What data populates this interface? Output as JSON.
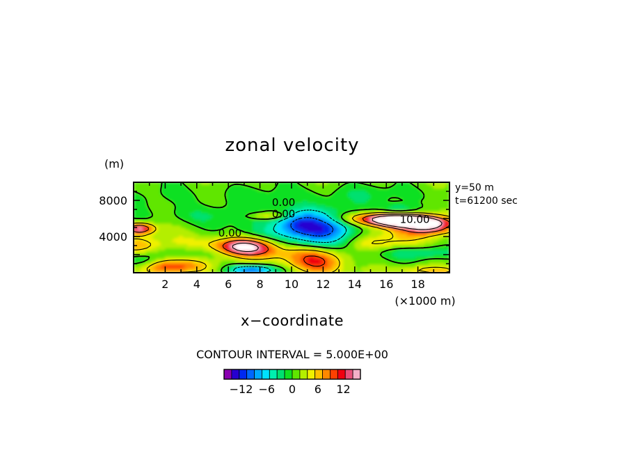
{
  "chart_data": {
    "type": "heatmap",
    "title": "zonal velocity",
    "xlabel": "x−coordinate",
    "ylabel": "(m)",
    "x_unit_label": "(×1000 m)",
    "x_ticks": [
      "2",
      "4",
      "6",
      "8",
      "10",
      "12",
      "14",
      "16",
      "18"
    ],
    "y_ticks": [
      "4000",
      "8000"
    ],
    "xlim": [
      0,
      20
    ],
    "ylim": [
      0,
      10000
    ],
    "info": [
      "y=50 m",
      "t=61200 sec"
    ],
    "contour_interval_text": "CONTOUR INTERVAL = 5.000E+00",
    "contour_labels": [
      {
        "text": "0.00",
        "x": 9.5,
        "y": 7400
      },
      {
        "text": "0.00",
        "x": 9.5,
        "y": 6100
      },
      {
        "text": "0.00",
        "x": 6.1,
        "y": 4000
      },
      {
        "text": "10.00",
        "x": 17.8,
        "y": 5500
      }
    ],
    "colorbar": {
      "tick_labels": [
        "−12",
        "−6",
        "0",
        "6",
        "12"
      ],
      "tick_values": [
        -12,
        -6,
        0,
        6,
        12
      ],
      "min": -16,
      "max": 16,
      "colors": [
        "#8a00b0",
        "#2600d0",
        "#0028f0",
        "#0066ff",
        "#00a8ff",
        "#00e0ff",
        "#00f0b0",
        "#00e070",
        "#10e020",
        "#60e600",
        "#b4ee00",
        "#f0f000",
        "#ffc000",
        "#ff8800",
        "#ff4000",
        "#f00010",
        "#e8507a",
        "#f4b0c8"
      ]
    },
    "grid": false,
    "field_blobs": [
      {
        "x": 5.0,
        "y": 8500,
        "rx": 6.5,
        "ry": 1400,
        "v": -1.5
      },
      {
        "x": 15.0,
        "y": 8700,
        "rx": 5.0,
        "ry": 1100,
        "v": -2.0
      },
      {
        "x": 11.5,
        "y": 5000,
        "rx": 2.6,
        "ry": 2000,
        "v": -13.0
      },
      {
        "x": 10.3,
        "y": 5600,
        "rx": 1.2,
        "ry": 1200,
        "v": -4.0
      },
      {
        "x": 4.5,
        "y": 6300,
        "rx": 3.0,
        "ry": 1100,
        "v": -3.0
      },
      {
        "x": 7.5,
        "y": 4300,
        "rx": 2.5,
        "ry": 900,
        "v": -2.5
      },
      {
        "x": 0.4,
        "y": 4900,
        "rx": 0.9,
        "ry": 600,
        "v": 14.0
      },
      {
        "x": 0.3,
        "y": 3000,
        "rx": 1.6,
        "ry": 1100,
        "v": 5.0
      },
      {
        "x": 7.0,
        "y": 2800,
        "rx": 1.7,
        "ry": 900,
        "v": 13.0
      },
      {
        "x": 6.0,
        "y": 3000,
        "rx": 3.2,
        "ry": 1300,
        "v": 5.0
      },
      {
        "x": 2.3,
        "y": 700,
        "rx": 2.3,
        "ry": 850,
        "v": 10.0
      },
      {
        "x": 0.5,
        "y": 1200,
        "rx": 1.2,
        "ry": 1000,
        "v": -7.0
      },
      {
        "x": 4.5,
        "y": 2300,
        "rx": 3.0,
        "ry": 800,
        "v": -3.5
      },
      {
        "x": 7.6,
        "y": 300,
        "rx": 1.6,
        "ry": 600,
        "v": -12.0
      },
      {
        "x": 11.5,
        "y": 1200,
        "rx": 1.9,
        "ry": 1300,
        "v": 10.0
      },
      {
        "x": 10.0,
        "y": 2200,
        "rx": 3.0,
        "ry": 800,
        "v": 3.0
      },
      {
        "x": 16.2,
        "y": 6000,
        "rx": 2.8,
        "ry": 700,
        "v": 16.0
      },
      {
        "x": 17.6,
        "y": 5600,
        "rx": 2.0,
        "ry": 550,
        "v": 17.0
      },
      {
        "x": 18.8,
        "y": 5000,
        "rx": 1.5,
        "ry": 700,
        "v": 10.0
      },
      {
        "x": 17.5,
        "y": 4500,
        "rx": 3.0,
        "ry": 1200,
        "v": 4.0
      },
      {
        "x": 16.8,
        "y": 6900,
        "rx": 1.2,
        "ry": 700,
        "v": -6.5
      },
      {
        "x": 18.2,
        "y": 2200,
        "rx": 2.5,
        "ry": 700,
        "v": -4.0
      },
      {
        "x": 18.5,
        "y": 300,
        "rx": 2.5,
        "ry": 500,
        "v": 5.0
      },
      {
        "x": 14.5,
        "y": 1500,
        "rx": 2.0,
        "ry": 1200,
        "v": -1.5
      },
      {
        "x": 8.5,
        "y": 6300,
        "rx": 1.3,
        "ry": 400,
        "v": 6.0
      },
      {
        "x": 15.5,
        "y": 3300,
        "rx": 2.0,
        "ry": 700,
        "v": 3.5
      }
    ]
  }
}
